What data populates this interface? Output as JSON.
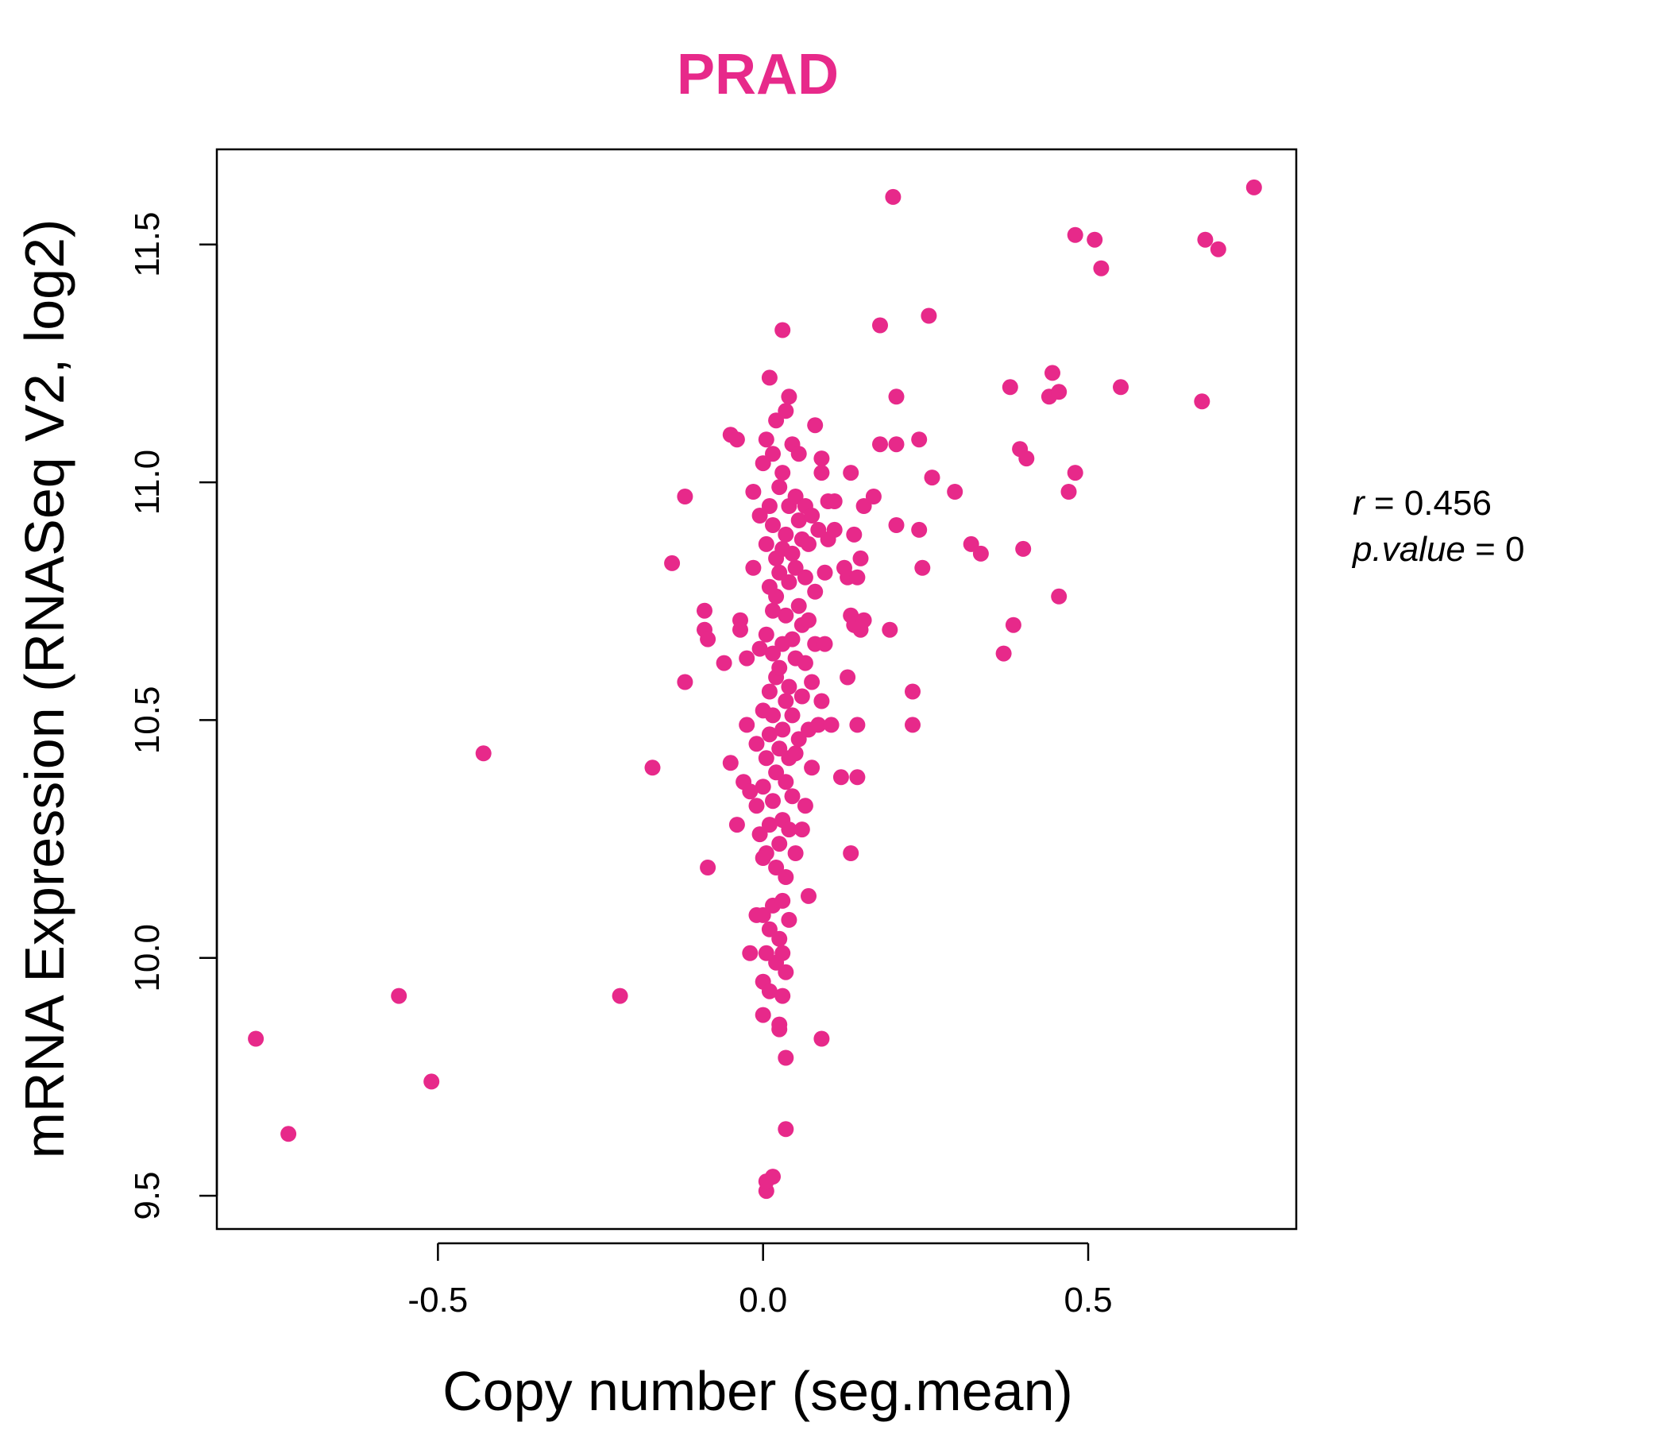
{
  "chart_data": {
    "type": "scatter",
    "title": "PRAD",
    "xlabel": "Copy number (seg.mean)",
    "ylabel": "mRNA Expression (RNASeq V2, log2)",
    "xlim": [
      -0.84,
      0.82
    ],
    "ylim": [
      9.43,
      11.7
    ],
    "xticks": [
      -0.5,
      0.0,
      0.5
    ],
    "xtick_labels": [
      "-0.5",
      "0.0",
      "0.5"
    ],
    "yticks": [
      9.5,
      10.0,
      10.5,
      11.0,
      11.5
    ],
    "ytick_labels": [
      "9.5",
      "10.0",
      "10.5",
      "11.0",
      "11.5"
    ],
    "grid": false,
    "point_color": "#E7298A",
    "annotations": {
      "r_label": "r",
      "r_value": "0.456",
      "p_label": "p.value",
      "p_value": "0"
    },
    "series": [
      {
        "points": [
          [
            -0.78,
            9.83
          ],
          [
            -0.73,
            9.63
          ],
          [
            -0.56,
            9.92
          ],
          [
            -0.51,
            9.74
          ],
          [
            -0.43,
            10.43
          ],
          [
            -0.22,
            9.92
          ],
          [
            -0.17,
            10.4
          ],
          [
            -0.14,
            10.83
          ],
          [
            -0.12,
            10.97
          ],
          [
            -0.12,
            10.58
          ],
          [
            -0.09,
            10.73
          ],
          [
            -0.09,
            10.69
          ],
          [
            -0.085,
            10.67
          ],
          [
            -0.085,
            10.19
          ],
          [
            -0.06,
            10.62
          ],
          [
            -0.05,
            10.41
          ],
          [
            -0.05,
            11.1
          ],
          [
            -0.04,
            11.09
          ],
          [
            -0.04,
            10.28
          ],
          [
            -0.035,
            10.71
          ],
          [
            -0.035,
            10.69
          ],
          [
            -0.03,
            10.37
          ],
          [
            -0.025,
            10.63
          ],
          [
            -0.025,
            10.49
          ],
          [
            -0.02,
            10.01
          ],
          [
            -0.02,
            10.35
          ],
          [
            -0.015,
            10.98
          ],
          [
            -0.015,
            10.82
          ],
          [
            -0.01,
            10.32
          ],
          [
            -0.01,
            10.09
          ],
          [
            -0.01,
            10.45
          ],
          [
            -0.005,
            10.65
          ],
          [
            -0.005,
            10.93
          ],
          [
            -0.005,
            10.26
          ],
          [
            0.0,
            9.88
          ],
          [
            0.0,
            9.95
          ],
          [
            0.0,
            10.21
          ],
          [
            0.0,
            11.04
          ],
          [
            0.0,
            10.52
          ],
          [
            0.0,
            10.36
          ],
          [
            0.0,
            10.09
          ],
          [
            0.005,
            9.51
          ],
          [
            0.005,
            9.53
          ],
          [
            0.005,
            10.01
          ],
          [
            0.005,
            10.22
          ],
          [
            0.005,
            10.42
          ],
          [
            0.005,
            10.68
          ],
          [
            0.005,
            10.87
          ],
          [
            0.005,
            11.09
          ],
          [
            0.01,
            9.93
          ],
          [
            0.01,
            10.06
          ],
          [
            0.01,
            10.28
          ],
          [
            0.01,
            10.47
          ],
          [
            0.01,
            10.56
          ],
          [
            0.01,
            10.78
          ],
          [
            0.01,
            10.95
          ],
          [
            0.01,
            11.22
          ],
          [
            0.015,
            9.54
          ],
          [
            0.015,
            10.11
          ],
          [
            0.015,
            10.33
          ],
          [
            0.015,
            10.51
          ],
          [
            0.015,
            10.64
          ],
          [
            0.015,
            10.73
          ],
          [
            0.015,
            10.91
          ],
          [
            0.015,
            11.06
          ],
          [
            0.02,
            9.99
          ],
          [
            0.02,
            10.19
          ],
          [
            0.02,
            10.39
          ],
          [
            0.02,
            10.59
          ],
          [
            0.02,
            10.76
          ],
          [
            0.02,
            10.84
          ],
          [
            0.02,
            11.13
          ],
          [
            0.025,
            9.85
          ],
          [
            0.025,
            9.86
          ],
          [
            0.025,
            10.04
          ],
          [
            0.025,
            10.24
          ],
          [
            0.025,
            10.44
          ],
          [
            0.025,
            10.61
          ],
          [
            0.025,
            10.81
          ],
          [
            0.025,
            10.99
          ],
          [
            0.03,
            11.32
          ],
          [
            0.03,
            9.92
          ],
          [
            0.03,
            10.01
          ],
          [
            0.03,
            10.12
          ],
          [
            0.03,
            10.29
          ],
          [
            0.03,
            10.48
          ],
          [
            0.03,
            10.66
          ],
          [
            0.03,
            10.86
          ],
          [
            0.03,
            11.02
          ],
          [
            0.035,
            9.79
          ],
          [
            0.035,
            9.64
          ],
          [
            0.035,
            9.97
          ],
          [
            0.035,
            10.17
          ],
          [
            0.035,
            10.37
          ],
          [
            0.035,
            10.54
          ],
          [
            0.035,
            10.72
          ],
          [
            0.035,
            10.89
          ],
          [
            0.035,
            11.15
          ],
          [
            0.04,
            10.08
          ],
          [
            0.04,
            10.27
          ],
          [
            0.04,
            10.42
          ],
          [
            0.04,
            10.57
          ],
          [
            0.04,
            10.79
          ],
          [
            0.04,
            10.95
          ],
          [
            0.04,
            11.18
          ],
          [
            0.045,
            10.34
          ],
          [
            0.045,
            10.51
          ],
          [
            0.045,
            10.67
          ],
          [
            0.045,
            10.85
          ],
          [
            0.045,
            11.08
          ],
          [
            0.05,
            10.22
          ],
          [
            0.05,
            10.43
          ],
          [
            0.05,
            10.63
          ],
          [
            0.05,
            10.82
          ],
          [
            0.05,
            10.97
          ],
          [
            0.055,
            10.46
          ],
          [
            0.055,
            10.74
          ],
          [
            0.055,
            10.92
          ],
          [
            0.055,
            11.06
          ],
          [
            0.06,
            10.55
          ],
          [
            0.06,
            10.7
          ],
          [
            0.06,
            10.88
          ],
          [
            0.06,
            10.27
          ],
          [
            0.065,
            10.32
          ],
          [
            0.065,
            10.62
          ],
          [
            0.065,
            10.8
          ],
          [
            0.065,
            10.95
          ],
          [
            0.07,
            10.13
          ],
          [
            0.07,
            10.48
          ],
          [
            0.07,
            10.71
          ],
          [
            0.07,
            10.87
          ],
          [
            0.075,
            10.4
          ],
          [
            0.075,
            10.58
          ],
          [
            0.075,
            10.93
          ],
          [
            0.08,
            11.12
          ],
          [
            0.08,
            10.66
          ],
          [
            0.08,
            10.77
          ],
          [
            0.085,
            10.49
          ],
          [
            0.085,
            10.9
          ],
          [
            0.09,
            9.83
          ],
          [
            0.09,
            10.54
          ],
          [
            0.09,
            11.05
          ],
          [
            0.09,
            11.02
          ],
          [
            0.095,
            10.66
          ],
          [
            0.095,
            10.81
          ],
          [
            0.1,
            10.96
          ],
          [
            0.1,
            10.88
          ],
          [
            0.105,
            10.49
          ],
          [
            0.11,
            10.9
          ],
          [
            0.11,
            10.96
          ],
          [
            0.12,
            10.38
          ],
          [
            0.125,
            10.82
          ],
          [
            0.13,
            10.59
          ],
          [
            0.13,
            10.8
          ],
          [
            0.135,
            10.22
          ],
          [
            0.135,
            11.02
          ],
          [
            0.135,
            10.72
          ],
          [
            0.14,
            10.7
          ],
          [
            0.14,
            10.89
          ],
          [
            0.145,
            10.49
          ],
          [
            0.145,
            10.38
          ],
          [
            0.145,
            10.8
          ],
          [
            0.15,
            10.84
          ],
          [
            0.15,
            10.69
          ],
          [
            0.155,
            10.95
          ],
          [
            0.155,
            10.71
          ],
          [
            0.17,
            10.97
          ],
          [
            0.18,
            11.33
          ],
          [
            0.18,
            11.08
          ],
          [
            0.195,
            10.69
          ],
          [
            0.2,
            11.6
          ],
          [
            0.205,
            10.91
          ],
          [
            0.205,
            11.08
          ],
          [
            0.205,
            11.18
          ],
          [
            0.23,
            10.56
          ],
          [
            0.23,
            10.49
          ],
          [
            0.24,
            10.9
          ],
          [
            0.24,
            11.09
          ],
          [
            0.245,
            10.82
          ],
          [
            0.255,
            11.35
          ],
          [
            0.26,
            11.01
          ],
          [
            0.295,
            10.98
          ],
          [
            0.32,
            10.87
          ],
          [
            0.335,
            10.85
          ],
          [
            0.37,
            10.64
          ],
          [
            0.38,
            11.2
          ],
          [
            0.385,
            10.7
          ],
          [
            0.395,
            11.07
          ],
          [
            0.4,
            10.86
          ],
          [
            0.405,
            11.05
          ],
          [
            0.44,
            11.18
          ],
          [
            0.445,
            11.23
          ],
          [
            0.455,
            11.19
          ],
          [
            0.455,
            10.76
          ],
          [
            0.47,
            10.98
          ],
          [
            0.48,
            11.02
          ],
          [
            0.48,
            11.52
          ],
          [
            0.51,
            11.51
          ],
          [
            0.52,
            11.45
          ],
          [
            0.55,
            11.2
          ],
          [
            0.675,
            11.17
          ],
          [
            0.68,
            11.51
          ],
          [
            0.7,
            11.49
          ],
          [
            0.755,
            11.62
          ]
        ]
      }
    ]
  }
}
